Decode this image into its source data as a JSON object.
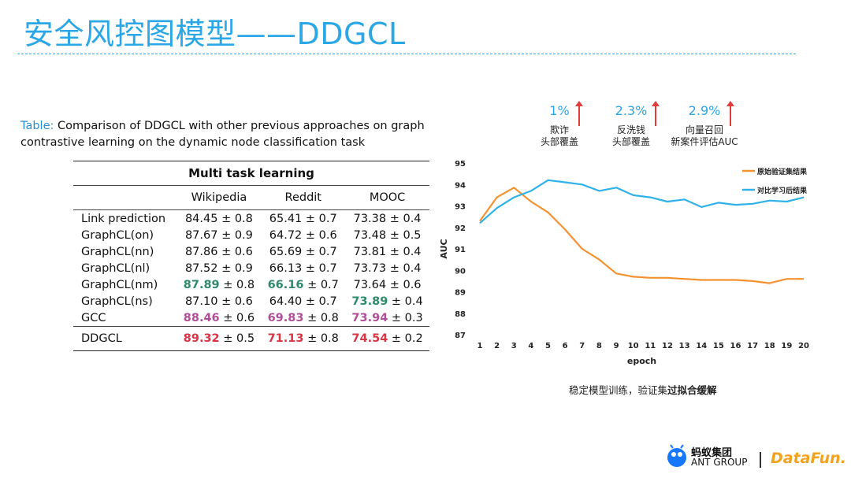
{
  "slide": {
    "title": "安全风控图模型——DDGCL"
  },
  "table": {
    "caption_lead": "Table:",
    "caption_rest": "Comparison of DDGCL with other previous approaches on graph contrastive learning on the dynamic node classification task",
    "group_header": "Multi task learning",
    "columns": [
      "Wikipedia",
      "Reddit",
      "MOOC"
    ],
    "rows": [
      {
        "method": "Link prediction",
        "cells": [
          {
            "v": "84.45",
            "pm": "± 0.8",
            "hl": ""
          },
          {
            "v": "65.41",
            "pm": "± 0.7",
            "hl": ""
          },
          {
            "v": "73.38",
            "pm": "± 0.4",
            "hl": ""
          }
        ]
      },
      {
        "method": "GraphCL(on)",
        "cells": [
          {
            "v": "87.67",
            "pm": "± 0.9",
            "hl": ""
          },
          {
            "v": "64.72",
            "pm": "± 0.6",
            "hl": ""
          },
          {
            "v": "73.48",
            "pm": "± 0.5",
            "hl": ""
          }
        ]
      },
      {
        "method": "GraphCL(nn)",
        "cells": [
          {
            "v": "87.86",
            "pm": "± 0.6",
            "hl": ""
          },
          {
            "v": "65.69",
            "pm": "± 0.7",
            "hl": ""
          },
          {
            "v": "73.81",
            "pm": "± 0.4",
            "hl": ""
          }
        ]
      },
      {
        "method": "GraphCL(nl)",
        "cells": [
          {
            "v": "87.52",
            "pm": "± 0.9",
            "hl": ""
          },
          {
            "v": "66.13",
            "pm": "± 0.7",
            "hl": ""
          },
          {
            "v": "73.73",
            "pm": "± 0.4",
            "hl": ""
          }
        ]
      },
      {
        "method": "GraphCL(nm)",
        "cells": [
          {
            "v": "87.89",
            "pm": "± 0.8",
            "hl": "green"
          },
          {
            "v": "66.16",
            "pm": "± 0.7",
            "hl": "green"
          },
          {
            "v": "73.64",
            "pm": "± 0.6",
            "hl": ""
          }
        ]
      },
      {
        "method": "GraphCL(ns)",
        "cells": [
          {
            "v": "87.10",
            "pm": "± 0.6",
            "hl": ""
          },
          {
            "v": "64.40",
            "pm": "± 0.7",
            "hl": ""
          },
          {
            "v": "73.89",
            "pm": "± 0.4",
            "hl": "green"
          }
        ]
      },
      {
        "method": "GCC",
        "cells": [
          {
            "v": "88.46",
            "pm": "± 0.6",
            "hl": "purple"
          },
          {
            "v": "69.83",
            "pm": "± 0.8",
            "hl": "purple"
          },
          {
            "v": "73.94",
            "pm": "± 0.3",
            "hl": "purple"
          }
        ]
      },
      {
        "method": "DDGCL",
        "cells": [
          {
            "v": "89.32",
            "pm": "± 0.5",
            "hl": "red"
          },
          {
            "v": "71.13",
            "pm": "± 0.8",
            "hl": "red"
          },
          {
            "v": "74.54",
            "pm": "± 0.2",
            "hl": "red"
          }
        ]
      }
    ]
  },
  "improvements": [
    {
      "pct": "1%",
      "line1": "欺诈",
      "line2": "头部覆盖"
    },
    {
      "pct": "2.3%",
      "line1": "反洗钱",
      "line2": "头部覆盖"
    },
    {
      "pct": "2.9%",
      "line1": "向量召回",
      "line2": "新案件评估AUC"
    }
  ],
  "colors": {
    "accent": "#2aa7e6",
    "orange": "#f5922f",
    "blue": "#2fb2ea",
    "up_arrow": "#e23b3b"
  },
  "chart_data": {
    "type": "line",
    "xlabel": "epoch",
    "ylabel": "AUC",
    "x": [
      1,
      2,
      3,
      4,
      5,
      6,
      7,
      8,
      9,
      10,
      11,
      12,
      13,
      14,
      15,
      16,
      17,
      18,
      19,
      20
    ],
    "ylim": [
      87,
      95
    ],
    "yticks": [
      87,
      88,
      89,
      90,
      91,
      92,
      93,
      94,
      95
    ],
    "grid": false,
    "legend_position": "top-right",
    "series": [
      {
        "name": "原始验证集结果",
        "color": "#f5922f",
        "values": [
          92.3,
          93.4,
          93.85,
          93.2,
          92.7,
          91.9,
          91.0,
          90.5,
          89.85,
          89.7,
          89.65,
          89.65,
          89.6,
          89.55,
          89.55,
          89.55,
          89.5,
          89.4,
          89.6,
          89.6
        ]
      },
      {
        "name": "对比学习后结果",
        "color": "#2fb2ea",
        "values": [
          92.2,
          92.9,
          93.4,
          93.7,
          94.2,
          94.1,
          94.0,
          93.7,
          93.85,
          93.5,
          93.4,
          93.2,
          93.3,
          92.95,
          93.15,
          93.05,
          93.1,
          93.25,
          93.2,
          93.4
        ]
      }
    ]
  },
  "chart_caption": {
    "normal": "稳定模型训练，验证集",
    "bold": "过拟合缓解"
  },
  "logos": {
    "ant_zh": "蚂蚁集团",
    "ant_en": "ANT GROUP",
    "datafun": "DataFun."
  }
}
